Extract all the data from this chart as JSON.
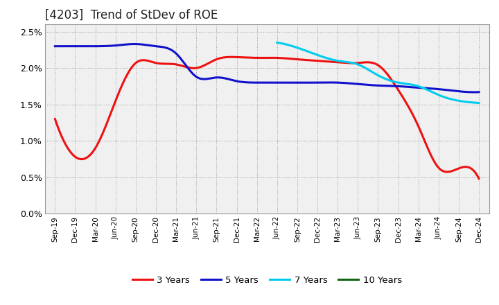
{
  "title": "[4203]  Trend of StDev of ROE",
  "x_labels": [
    "Sep-19",
    "Dec-19",
    "Mar-20",
    "Jun-20",
    "Sep-20",
    "Dec-20",
    "Mar-21",
    "Jun-21",
    "Sep-21",
    "Dec-21",
    "Mar-22",
    "Jun-22",
    "Sep-22",
    "Dec-22",
    "Mar-23",
    "Jun-23",
    "Sep-23",
    "Dec-23",
    "Mar-24",
    "Jun-24",
    "Sep-24",
    "Dec-24"
  ],
  "series_3y": [
    1.3,
    0.78,
    0.9,
    1.55,
    2.07,
    2.07,
    2.05,
    2.0,
    2.12,
    2.15,
    2.14,
    2.14,
    2.12,
    2.1,
    2.08,
    2.07,
    2.04,
    1.7,
    1.2,
    0.63,
    0.62,
    0.48
  ],
  "series_5y": [
    2.3,
    2.3,
    2.3,
    2.31,
    2.33,
    2.3,
    2.2,
    1.88,
    1.87,
    1.82,
    1.8,
    1.8,
    1.8,
    1.8,
    1.8,
    1.78,
    1.76,
    1.75,
    1.73,
    1.71,
    1.68,
    1.67
  ],
  "series_7y": [
    null,
    null,
    null,
    null,
    null,
    null,
    null,
    null,
    null,
    null,
    null,
    2.35,
    2.28,
    2.18,
    2.1,
    2.05,
    1.9,
    1.8,
    1.75,
    1.63,
    1.55,
    1.52
  ],
  "series_10y": [
    null,
    null,
    null,
    null,
    null,
    null,
    null,
    null,
    null,
    null,
    null,
    null,
    null,
    null,
    null,
    null,
    null,
    null,
    null,
    null,
    null,
    null
  ],
  "colors": {
    "3y": "#ee1111",
    "5y": "#1111cc",
    "7y": "#00ccee",
    "10y": "#116611"
  },
  "ylim": [
    0.0,
    0.026
  ],
  "yticks": [
    0.0,
    0.005,
    0.01,
    0.015,
    0.02,
    0.025
  ],
  "ytick_labels": [
    "0.0%",
    "0.5%",
    "1.0%",
    "1.5%",
    "2.0%",
    "2.5%"
  ],
  "background_color": "#ffffff",
  "plot_bg_color": "#f0f0f0",
  "grid_color": "#888888",
  "title_fontsize": 12,
  "legend_labels": [
    "3 Years",
    "5 Years",
    "7 Years",
    "10 Years"
  ]
}
